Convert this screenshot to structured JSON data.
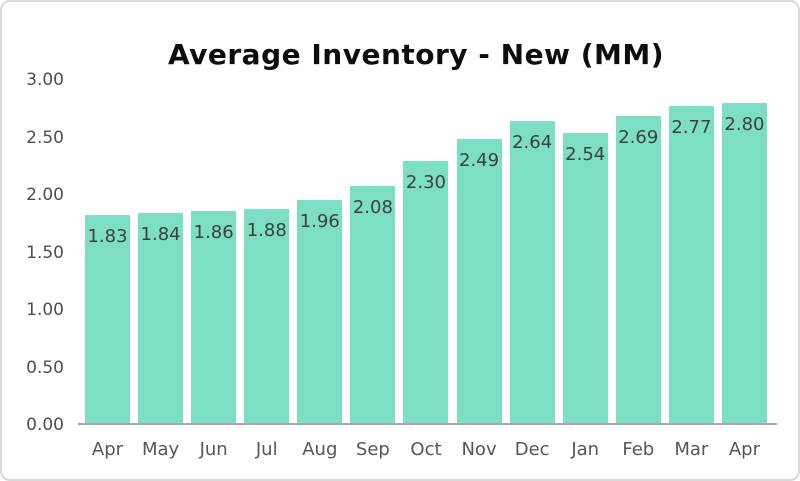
{
  "chart_data": {
    "type": "bar",
    "title": "Average Inventory - New (MM)",
    "categories": [
      "Apr",
      "May",
      "Jun",
      "Jul",
      "Aug",
      "Sep",
      "Oct",
      "Nov",
      "Dec",
      "Jan",
      "Feb",
      "Mar",
      "Apr"
    ],
    "values": [
      1.83,
      1.84,
      1.86,
      1.88,
      1.96,
      2.08,
      2.3,
      2.49,
      2.64,
      2.54,
      2.69,
      2.77,
      2.8
    ],
    "bar_labels": [
      "1.83",
      "1.84",
      "1.86",
      "1.88",
      "1.96",
      "2.08",
      "2.30",
      "2.49",
      "2.64",
      "2.54",
      "2.69",
      "2.77",
      "2.80"
    ],
    "y_ticks": [
      "3.00",
      "2.50",
      "2.00",
      "1.50",
      "1.00",
      "0.50",
      "0.00"
    ],
    "ylim": [
      0,
      3
    ],
    "xlabel": "",
    "ylabel": "",
    "grid": "off",
    "legend": "none",
    "bar_color": "#7cdec2",
    "bar_label_color": "#3e4040",
    "axis_text_color": "#4f4f4f",
    "x_axis_text_color": "#565656",
    "axis_line_color": "#a8a8a8",
    "title_color": "#0d0d0d",
    "background_color": "#ffffff",
    "border_color": "#d9d9d9"
  }
}
